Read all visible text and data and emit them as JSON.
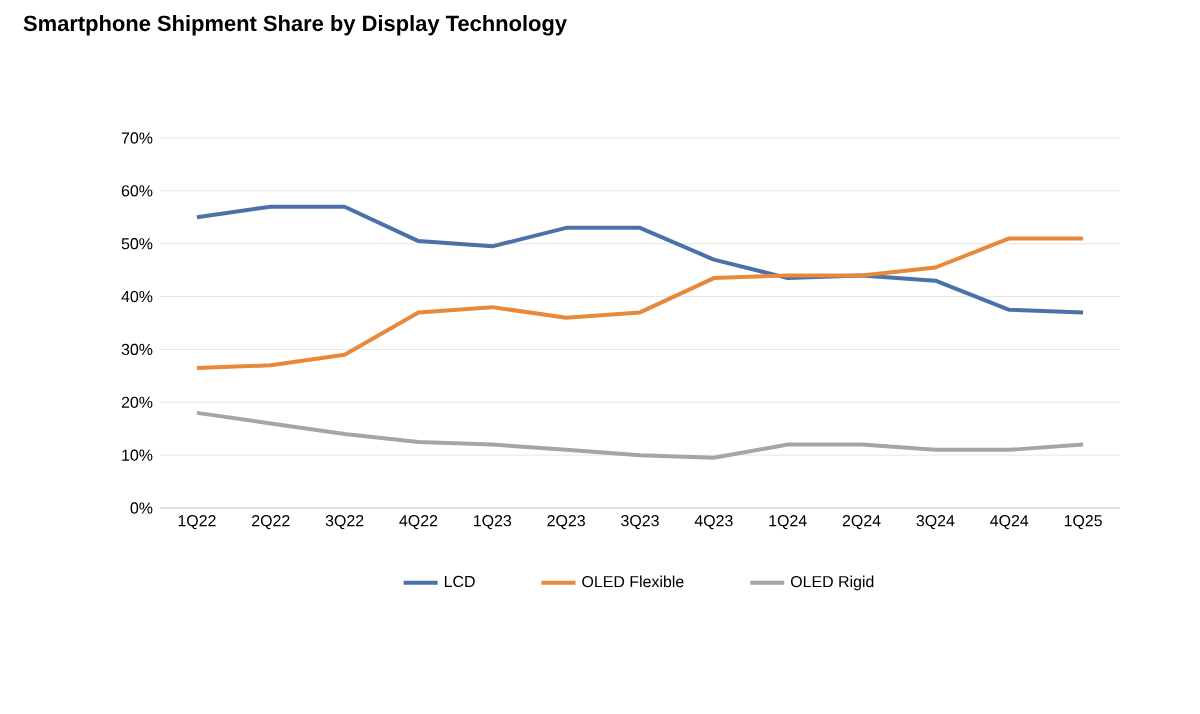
{
  "chart_data": {
    "type": "line",
    "title": "Smartphone Shipment Share by Display Technology",
    "categories": [
      "1Q22",
      "2Q22",
      "3Q22",
      "4Q22",
      "1Q23",
      "2Q23",
      "3Q23",
      "4Q23",
      "1Q24",
      "2Q24",
      "3Q24",
      "4Q24",
      "1Q25"
    ],
    "series": [
      {
        "name": "LCD",
        "color": "#4a72a8",
        "values": [
          55,
          57,
          57,
          50.5,
          49.5,
          53,
          53,
          47,
          43.5,
          44,
          43,
          37.5,
          37
        ]
      },
      {
        "name": "OLED Flexible",
        "color": "#e8883a",
        "values": [
          26.5,
          27,
          29,
          37,
          38,
          36,
          37,
          43.5,
          44,
          44,
          45.5,
          51,
          51
        ]
      },
      {
        "name": "OLED Rigid",
        "color": "#a5a5a5",
        "values": [
          18,
          16,
          14,
          12.5,
          12,
          11,
          10,
          9.5,
          12,
          12,
          11,
          11,
          12
        ]
      }
    ],
    "ylim": [
      0,
      70
    ],
    "yticks": [
      {
        "value": 0,
        "label": "0%"
      },
      {
        "value": 10,
        "label": "10%"
      },
      {
        "value": 20,
        "label": "20%"
      },
      {
        "value": 30,
        "label": "30%"
      },
      {
        "value": 40,
        "label": "40%"
      },
      {
        "value": 50,
        "label": "50%"
      },
      {
        "value": 60,
        "label": "60%"
      },
      {
        "value": 70,
        "label": "70%"
      }
    ],
    "grid": "y",
    "legend": "bottom",
    "marker": "none",
    "line_style": "solid"
  }
}
